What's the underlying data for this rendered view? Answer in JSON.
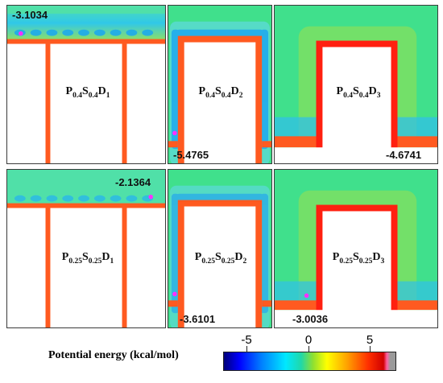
{
  "panels": [
    {
      "label": {
        "p": "0.4",
        "s": "0.4",
        "d": "1"
      },
      "value": "-3.1034"
    },
    {
      "label": {
        "p": "0.4",
        "s": "0.4",
        "d": "2"
      },
      "value": "-5.4765"
    },
    {
      "label": {
        "p": "0.4",
        "s": "0.4",
        "d": "3"
      },
      "value": "-4.6741"
    },
    {
      "label": {
        "p": "0.25",
        "s": "0.25",
        "d": "1"
      },
      "value": "-2.1364"
    },
    {
      "label": {
        "p": "0.25",
        "s": "0.25",
        "d": "2"
      },
      "value": "-3.6101"
    },
    {
      "label": {
        "p": "0.25",
        "s": "0.25",
        "d": "3"
      },
      "value": "-3.0036"
    }
  ],
  "colorbar": {
    "title": "Potential energy (kcal/mol)",
    "ticks": [
      "-5",
      "0",
      "5"
    ]
  },
  "colors": {
    "background": "#40e090",
    "well": "#20b8f0",
    "wall": "#ff5020",
    "wall_hot": "#ff1010",
    "minimum": "#ff30ff"
  }
}
